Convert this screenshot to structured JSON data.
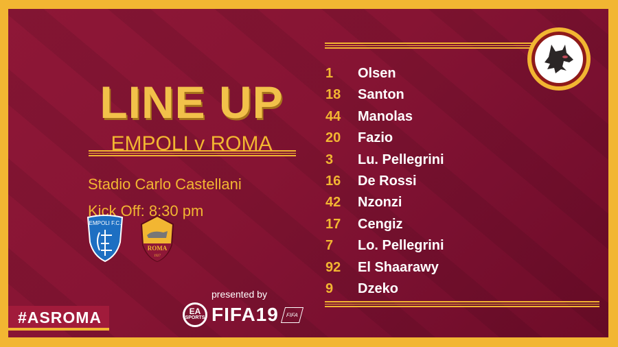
{
  "title": "LINE UP",
  "match": "EMPOLI v ROMA",
  "venue": "Stadio Carlo Castellani",
  "kickoff": "Kick Off: 8:30 pm",
  "crests": {
    "home": "EMPOLI F.C.",
    "away": "ROMA",
    "away_year": "1927"
  },
  "sponsor": {
    "presented_by": "presented by",
    "ea": "EA",
    "ea_sub": "SPORTS",
    "game": "FIFA19",
    "badge": "FIFA"
  },
  "hashtag": "#ASROMA",
  "players": [
    {
      "number": "1",
      "name": "Olsen"
    },
    {
      "number": "18",
      "name": "Santon"
    },
    {
      "number": "44",
      "name": "Manolas"
    },
    {
      "number": "20",
      "name": "Fazio"
    },
    {
      "number": "3",
      "name": "Lu. Pellegrini"
    },
    {
      "number": "16",
      "name": "De Rossi"
    },
    {
      "number": "42",
      "name": "Nzonzi"
    },
    {
      "number": "17",
      "name": "Cengiz"
    },
    {
      "number": "7",
      "name": "Lo. Pellegrini"
    },
    {
      "number": "92",
      "name": "El Shaarawy"
    },
    {
      "number": "9",
      "name": "Dzeko"
    }
  ],
  "colors": {
    "primary": "#8e1737",
    "accent": "#f2b632"
  }
}
